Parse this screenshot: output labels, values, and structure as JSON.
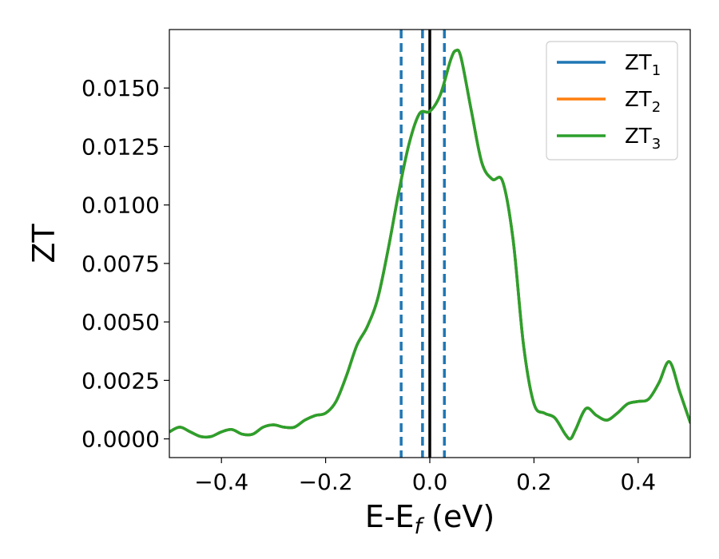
{
  "chart_data": {
    "type": "line",
    "title": "",
    "xlabel_main": "E-E",
    "xlabel_sub": "f",
    "xlabel_unit": " (eV)",
    "ylabel": "ZT",
    "xlim": [
      -0.5,
      0.5
    ],
    "ylim": [
      -0.0008,
      0.0175
    ],
    "xticks": [
      -0.4,
      -0.2,
      0.0,
      0.2,
      0.4
    ],
    "xtick_labels": [
      "−0.4",
      "−0.2",
      "0.0",
      "0.2",
      "0.4"
    ],
    "yticks": [
      0.0,
      0.0025,
      0.005,
      0.0075,
      0.01,
      0.0125,
      0.015
    ],
    "ytick_labels": [
      "0.0000",
      "0.0025",
      "0.0050",
      "0.0075",
      "0.0100",
      "0.0125",
      "0.0150"
    ],
    "grid": false,
    "legend_position": "top-right",
    "x": [
      -0.5,
      -0.48,
      -0.46,
      -0.44,
      -0.42,
      -0.4,
      -0.38,
      -0.36,
      -0.34,
      -0.32,
      -0.3,
      -0.28,
      -0.26,
      -0.24,
      -0.22,
      -0.2,
      -0.18,
      -0.16,
      -0.14,
      -0.12,
      -0.1,
      -0.08,
      -0.06,
      -0.04,
      -0.02,
      0.0,
      0.02,
      0.04,
      0.05,
      0.06,
      0.08,
      0.1,
      0.12,
      0.14,
      0.16,
      0.18,
      0.2,
      0.22,
      0.24,
      0.26,
      0.27,
      0.28,
      0.3,
      0.32,
      0.34,
      0.36,
      0.38,
      0.4,
      0.42,
      0.44,
      0.46,
      0.48,
      0.5
    ],
    "series": [
      {
        "name_main": "ZT",
        "name_sub": "1",
        "color": "#1f77b4",
        "y": [
          0.0003,
          0.0005,
          0.0003,
          0.0001,
          0.0001,
          0.0003,
          0.0004,
          0.0002,
          0.0002,
          0.0005,
          0.0006,
          0.0005,
          0.0005,
          0.0008,
          0.001,
          0.0011,
          0.0016,
          0.0027,
          0.004,
          0.0048,
          0.006,
          0.0081,
          0.0105,
          0.0126,
          0.0139,
          0.014,
          0.0147,
          0.0162,
          0.0166,
          0.0163,
          0.014,
          0.0118,
          0.0111,
          0.011,
          0.0085,
          0.004,
          0.0015,
          0.0011,
          0.0009,
          0.0002,
          0.0,
          0.0004,
          0.0013,
          0.001,
          0.0008,
          0.0011,
          0.0015,
          0.0016,
          0.0017,
          0.0024,
          0.0033,
          0.002,
          0.0007
        ]
      },
      {
        "name_main": "ZT",
        "name_sub": "2",
        "color": "#ff7f0e",
        "y": [
          0.0003,
          0.0005,
          0.0003,
          0.0001,
          0.0001,
          0.0003,
          0.0004,
          0.0002,
          0.0002,
          0.0005,
          0.0006,
          0.0005,
          0.0005,
          0.0008,
          0.001,
          0.0011,
          0.0016,
          0.0027,
          0.004,
          0.0048,
          0.006,
          0.0081,
          0.0105,
          0.0126,
          0.0139,
          0.014,
          0.0147,
          0.0162,
          0.0166,
          0.0163,
          0.014,
          0.0118,
          0.0111,
          0.011,
          0.0085,
          0.004,
          0.0015,
          0.0011,
          0.0009,
          0.0002,
          0.0,
          0.0004,
          0.0013,
          0.001,
          0.0008,
          0.0011,
          0.0015,
          0.0016,
          0.0017,
          0.0024,
          0.0033,
          0.002,
          0.0007
        ]
      },
      {
        "name_main": "ZT",
        "name_sub": "3",
        "color": "#2ca02c",
        "y": [
          0.0003,
          0.0005,
          0.0003,
          0.0001,
          0.0001,
          0.0003,
          0.0004,
          0.0002,
          0.0002,
          0.0005,
          0.0006,
          0.0005,
          0.0005,
          0.0008,
          0.001,
          0.0011,
          0.0016,
          0.0027,
          0.004,
          0.0048,
          0.006,
          0.0081,
          0.0105,
          0.0126,
          0.0139,
          0.014,
          0.0147,
          0.0162,
          0.0166,
          0.0163,
          0.014,
          0.0118,
          0.0111,
          0.011,
          0.0085,
          0.004,
          0.0015,
          0.0011,
          0.0009,
          0.0002,
          0.0,
          0.0004,
          0.0013,
          0.001,
          0.0008,
          0.0011,
          0.0015,
          0.0016,
          0.0017,
          0.0024,
          0.0033,
          0.002,
          0.0007
        ]
      }
    ],
    "vlines": [
      {
        "x": -0.055,
        "style": "dashed",
        "color": "#1f77b4"
      },
      {
        "x": -0.014,
        "style": "dashed",
        "color": "#1f77b4"
      },
      {
        "x": 0.0,
        "style": "solid",
        "color": "#000000"
      },
      {
        "x": 0.028,
        "style": "dashed",
        "color": "#1f77b4"
      }
    ]
  }
}
